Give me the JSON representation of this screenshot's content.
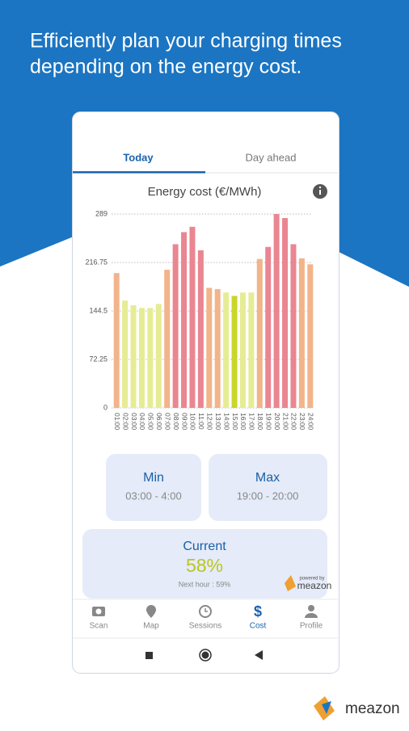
{
  "header": {
    "lines": [
      "Efficiently plan your charging times",
      "depending on the energy cost."
    ]
  },
  "tabs": [
    "Today",
    "Day ahead"
  ],
  "chart_data": {
    "type": "bar",
    "title": "Energy cost (€/MWh)",
    "categories": [
      "01:00",
      "02:00",
      "03:00",
      "04:00",
      "05:00",
      "06:00",
      "07:00",
      "08:00",
      "09:00",
      "10:00",
      "11:00",
      "12:00",
      "13:00",
      "14:00",
      "15:00",
      "16:00",
      "17:00",
      "18:00",
      "19:00",
      "20:00",
      "21:00",
      "22:00",
      "23:00",
      "24:00"
    ],
    "values": [
      201,
      160,
      153,
      149,
      149,
      155,
      206,
      244,
      262,
      270,
      235,
      179,
      177,
      172,
      167,
      172,
      172,
      222,
      240,
      289,
      283,
      244,
      223,
      214
    ],
    "colors": [
      "#f2b48a",
      "#e6ec94",
      "#e6ec94",
      "#e6ec94",
      "#e6ec94",
      "#e6ec94",
      "#f2b48a",
      "#ea8691",
      "#ea8691",
      "#ea8691",
      "#ea8691",
      "#f2b48a",
      "#f2b48a",
      "#e6ec94",
      "#cbd52a",
      "#e6ec94",
      "#e6ec94",
      "#f2b48a",
      "#ea8691",
      "#ea8691",
      "#ea8691",
      "#ea8691",
      "#f2b48a",
      "#f2b48a"
    ],
    "ylim": [
      0,
      289
    ],
    "yticks": [
      0,
      72.25,
      144.5,
      216.75,
      289
    ],
    "grid": true
  },
  "cards": {
    "min": {
      "label": "Min",
      "value": "03:00 - 4:00"
    },
    "max": {
      "label": "Max",
      "value": "19:00 - 20:00"
    },
    "current": {
      "label": "Current",
      "value": "58%",
      "next": "Next hour : 59%"
    }
  },
  "powered": {
    "caption": "powered by",
    "brand": "meazon"
  },
  "nav": [
    "Scan",
    "Map",
    "Sessions",
    "Cost",
    "Profile"
  ],
  "footer_brand": "meazon"
}
